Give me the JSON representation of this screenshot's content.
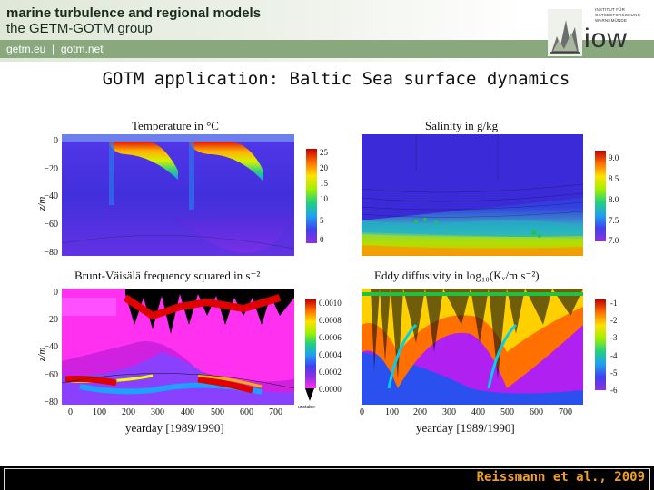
{
  "header": {
    "title": "marine turbulence and regional models",
    "subtitle": "the GETM-GOTM group",
    "links": [
      "getm.eu",
      "gotm.net"
    ],
    "separator": "|",
    "institute_text": "INSTITUT FÜR OSTSEEFORSCHUNG WARNEMÜNDE",
    "logo": "iow"
  },
  "slide": {
    "title": "GOTM application: Baltic Sea surface dynamics"
  },
  "panels": {
    "temperature": {
      "title": "Temperature in °C",
      "colorbar_ticks": [
        "25",
        "20",
        "15",
        "10",
        "5",
        "0"
      ]
    },
    "salinity": {
      "title": "Salinity in g/kg",
      "colorbar_ticks": [
        "9.0",
        "8.5",
        "8.0",
        "7.5",
        "7.0"
      ]
    },
    "brunt": {
      "title": "Brunt-Väisälä frequency squared in s⁻²",
      "colorbar_ticks": [
        "0.0010",
        "0.0008",
        "0.0006",
        "0.0004",
        "0.0002",
        "0.0000"
      ],
      "unstable_label": "unstable"
    },
    "eddy": {
      "title": "Eddy diffusivity in log₁₀(Kᵥ/m s⁻²)",
      "colorbar_ticks": [
        "-1",
        "-2",
        "-3",
        "-4",
        "-5",
        "-6"
      ]
    },
    "ylabel": "z/m",
    "yticks": [
      "0",
      "−20",
      "−40",
      "−60",
      "−80"
    ],
    "xticks": [
      "0",
      "100",
      "200",
      "300",
      "400",
      "500",
      "600",
      "700"
    ],
    "xlabel": "yearday [1989/1990]"
  },
  "footer": {
    "citation": "Reissmann et al., 2009"
  },
  "colors": {
    "header_strip": "#8aa87e",
    "citation": "#f0a020",
    "footer": "#000000"
  }
}
